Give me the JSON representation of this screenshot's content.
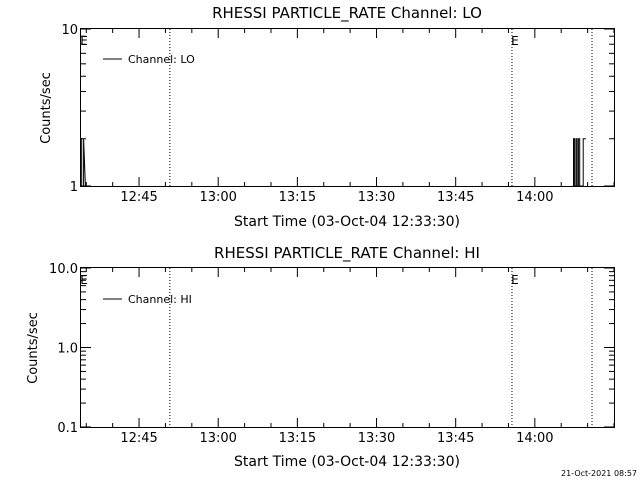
{
  "chart_data": [
    {
      "type": "line",
      "title": "RHESSI PARTICLE_RATE Channel: LO",
      "xlabel": "Start Time (03-Oct-04 12:33:30)",
      "ylabel": "Counts/sec",
      "yscale": "log",
      "xlim": [
        "12:34:00",
        "14:15:00"
      ],
      "ylim": [
        1,
        10
      ],
      "x_ticks": [
        "12:45",
        "13:00",
        "13:15",
        "13:30",
        "13:45",
        "14:00"
      ],
      "y_ticks": [
        {
          "value": 1,
          "label": "1"
        },
        {
          "value": 10,
          "label": "10"
        }
      ],
      "legend": {
        "position": "top-left",
        "entries": [
          "Channel: LO"
        ]
      },
      "markers": [
        {
          "time": "12:34:00",
          "label": "E",
          "line": false
        },
        {
          "time": "12:50:50",
          "label": "",
          "line": true
        },
        {
          "time": "13:55:40",
          "label": "E",
          "line": true
        },
        {
          "time": "14:10:50",
          "label": "",
          "line": true
        }
      ],
      "series": [
        {
          "name": "Channel: LO",
          "x": [
            "12:34:00",
            "12:34:08",
            "12:34:08",
            "12:34:30",
            "12:34:30",
            "12:34:50",
            "14:07:10",
            "14:07:20",
            "14:07:20",
            "14:07:32",
            "14:07:32",
            "14:07:48",
            "14:07:48",
            "14:08:00",
            "14:08:00",
            "14:08:15",
            "14:08:15",
            "14:08:30",
            "14:08:30",
            "14:09:10",
            "14:09:10",
            "14:09:40"
          ],
          "y": [
            2,
            2,
            1,
            1,
            2,
            1,
            1,
            1,
            2,
            2,
            1,
            1,
            2,
            2,
            1,
            1,
            2,
            2,
            1,
            1,
            2,
            2
          ]
        }
      ]
    },
    {
      "type": "line",
      "title": "RHESSI PARTICLE_RATE Channel: HI",
      "xlabel": "Start Time (03-Oct-04 12:33:30)",
      "ylabel": "Counts/sec",
      "yscale": "log",
      "xlim": [
        "12:34:00",
        "14:15:00"
      ],
      "ylim": [
        0.1,
        10
      ],
      "x_ticks": [
        "12:45",
        "13:00",
        "13:15",
        "13:30",
        "13:45",
        "14:00"
      ],
      "y_ticks": [
        {
          "value": 0.1,
          "label": "0.1"
        },
        {
          "value": 1,
          "label": "1.0"
        },
        {
          "value": 10,
          "label": "10.0"
        }
      ],
      "legend": {
        "position": "top-left",
        "entries": [
          "Channel: HI"
        ]
      },
      "markers": [
        {
          "time": "12:34:00",
          "label": "E",
          "line": false
        },
        {
          "time": "12:50:50",
          "label": "",
          "line": true
        },
        {
          "time": "13:55:40",
          "label": "E",
          "line": true
        },
        {
          "time": "14:10:50",
          "label": "",
          "line": true
        }
      ],
      "series": [
        {
          "name": "Channel: HI",
          "x": [],
          "y": []
        }
      ]
    }
  ],
  "footer": {
    "timestamp": "21-Oct-2021 08:57"
  },
  "colors": {
    "background": "#ffffff",
    "foreground": "#000000"
  }
}
